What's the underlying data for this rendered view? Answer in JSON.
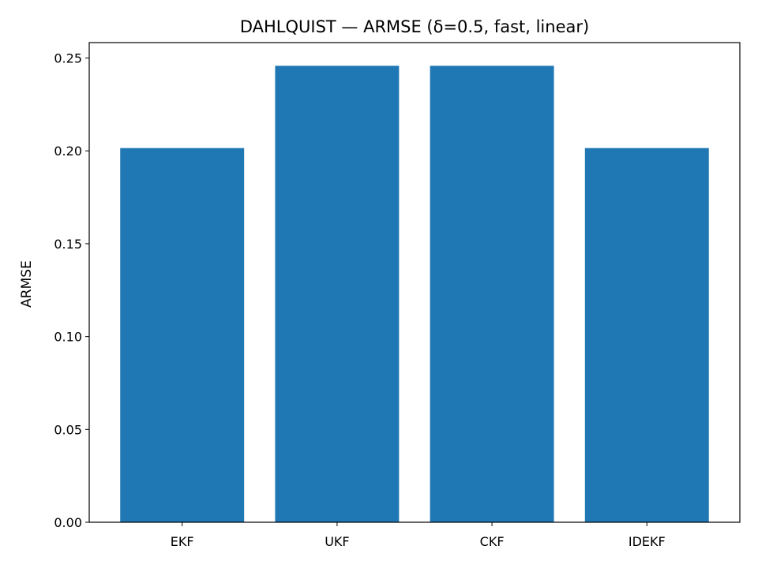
{
  "chart_data": {
    "type": "bar",
    "title": "DAHLQUIST — ARMSE (δ=0.5, fast, linear)",
    "xlabel": "",
    "ylabel": "ARMSE",
    "categories": [
      "EKF",
      "UKF",
      "CKF",
      "IDEKF"
    ],
    "values": [
      0.2015,
      0.2458,
      0.2458,
      0.2015
    ],
    "ylim": [
      0,
      0.2583
    ],
    "yticks": [
      0.0,
      0.05,
      0.1,
      0.15,
      0.2,
      0.25
    ],
    "ytick_labels": [
      "0.00",
      "0.05",
      "0.10",
      "0.15",
      "0.20",
      "0.25"
    ],
    "grid": false,
    "bar_color": "#1f77b4"
  }
}
